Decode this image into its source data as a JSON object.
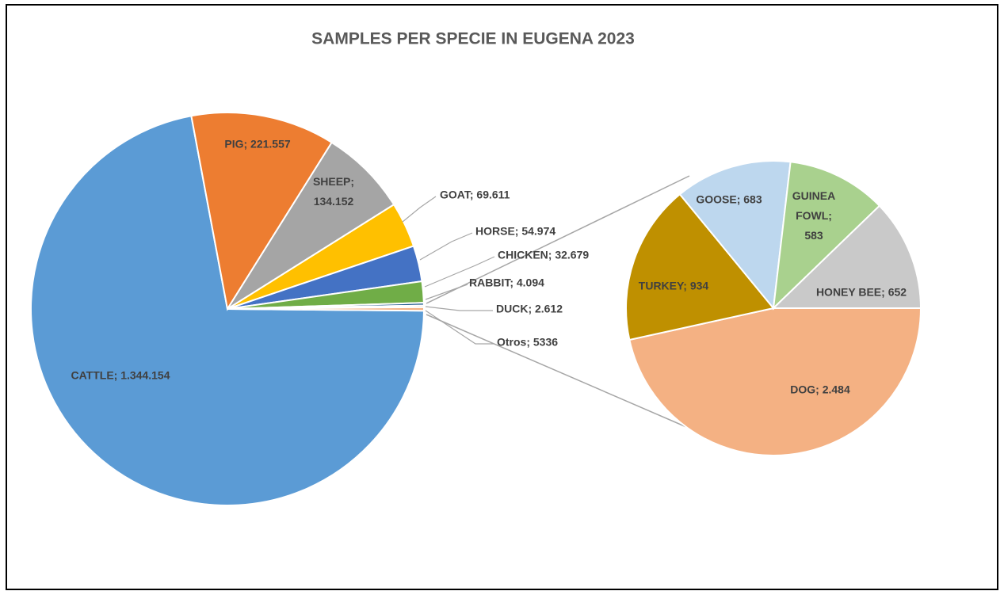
{
  "chart_data": [
    {
      "type": "pie",
      "title": "SAMPLES PER SPECIE IN EUGENA 2023",
      "values": [
        1344154,
        221557,
        134152,
        69611,
        54974,
        32679,
        4094,
        2612,
        5336
      ],
      "value_labels": [
        "CATTLE; 1.344.154",
        "PIG; 221.557",
        "SHEEP; 134.152",
        "GOAT; 69.611",
        "HORSE; 54.974",
        "CHICKEN; 32.679",
        "RABBIT; 4.094",
        "DUCK; 2.612",
        "Otros; 5336"
      ],
      "colors": [
        "#5b9bd5",
        "#ed7d31",
        "#a5a5a5",
        "#ffc000",
        "#4472c4",
        "#70ad47",
        "#255e91",
        "#9e480e",
        "#f4b183"
      ]
    },
    {
      "type": "pie",
      "values": [
        2484,
        934,
        683,
        583,
        652
      ],
      "value_labels": [
        "DOG; 2.484",
        "TURKEY; 934",
        "GOOSE; 683",
        "GUINEA FOWL; 583",
        "HONEY BEE; 652"
      ],
      "colors": [
        "#f4b183",
        "#bf9000",
        "#bdd7ee",
        "#a9d18e",
        "#c9c9c9"
      ]
    }
  ]
}
